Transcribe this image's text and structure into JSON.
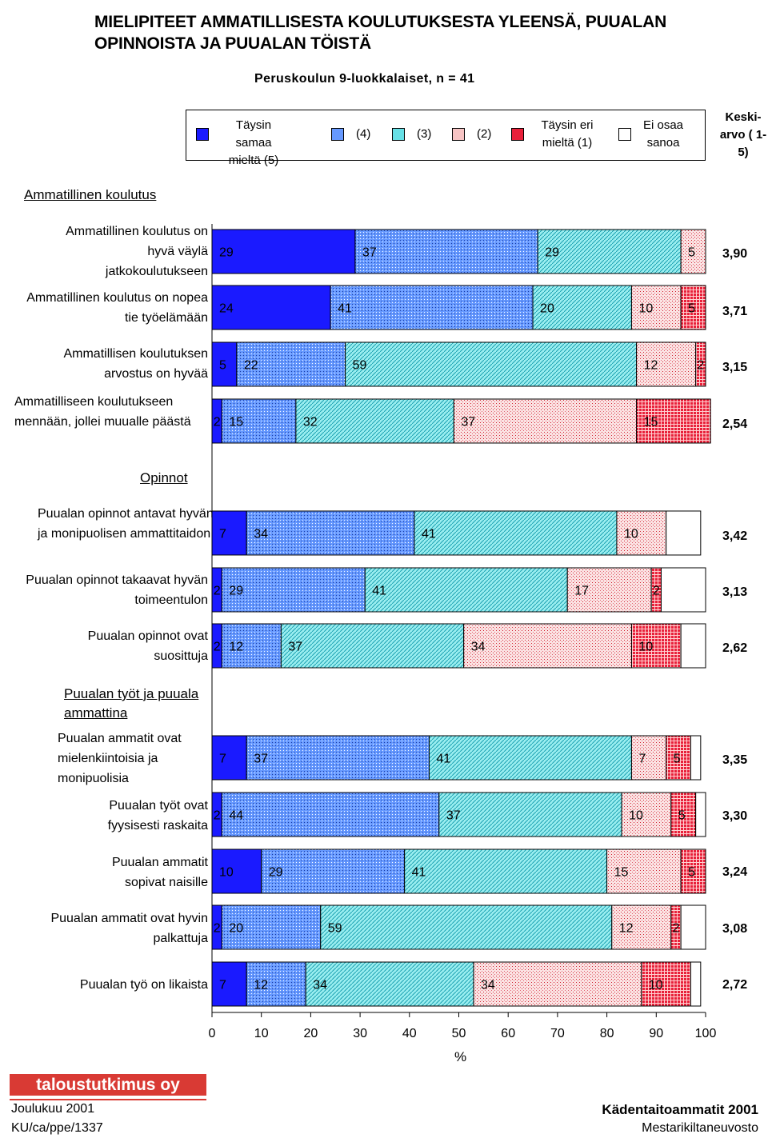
{
  "header": {
    "title": "MIELIPITEET AMMATILLISESTA KOULUTUKSESTA YLEENSÄ, PUUALAN OPINNOISTA JA PUUALAN TÖISTÄ",
    "subtitle": "Peruskoulun 9-luokkalaiset, n = 41"
  },
  "legend": {
    "items": [
      {
        "label": "Täysin samaa mieltä (5)",
        "pattern": "solid-blue"
      },
      {
        "label": "(4)",
        "pattern": "blue-dots"
      },
      {
        "label": "(3)",
        "pattern": "cyan-hatch"
      },
      {
        "label": "(2)",
        "pattern": "pink-dots"
      },
      {
        "label": "Täysin eri mieltä (1)",
        "pattern": "red-grid"
      },
      {
        "label": "Ei osaa sanoa",
        "pattern": "white"
      }
    ],
    "keskiarvo_label": "Keski- arvo ( 1-5)"
  },
  "sections": {
    "ammatillinen": "Ammatillinen koulutus",
    "opinnot": "Opinnot",
    "tyot": "Puualan työt ja puuala ammattina"
  },
  "colors": {
    "c5": "#1a1aff",
    "c4": "#6699ff",
    "c3": "#66e0e6",
    "c2": "#f09090",
    "c1": "#e8203a"
  },
  "chart_data": {
    "type": "bar",
    "orientation": "horizontal-stacked-percent",
    "xlabel": "%",
    "xlim": [
      0,
      100
    ],
    "xticks": [
      "0",
      "10",
      "20",
      "30",
      "40",
      "50",
      "60",
      "70",
      "80",
      "90",
      "100"
    ],
    "series_names": [
      "Täysin samaa mieltä (5)",
      "(4)",
      "(3)",
      "(2)",
      "Täysin eri mieltä (1)",
      "Ei osaa sanoa"
    ],
    "rows": [
      {
        "label": "Ammatillinen koulutus on hyvä väylä jatkokoulutukseen",
        "values": [
          29,
          37,
          29,
          5,
          0,
          0
        ],
        "mean": "3,90"
      },
      {
        "label": "Ammatillinen koulutus on nopea tie työelämään",
        "values": [
          24,
          41,
          20,
          10,
          5,
          0
        ],
        "mean": "3,71"
      },
      {
        "label": "Ammatillisen koulutuksen arvostus on hyvää",
        "values": [
          5,
          22,
          59,
          12,
          2,
          0
        ],
        "mean": "3,15"
      },
      {
        "label": "Ammatilliseen koulutukseen mennään, jollei muualle päästä",
        "values": [
          2,
          15,
          32,
          37,
          15,
          0
        ],
        "mean": "2,54"
      },
      {
        "label": "Puualan opinnot antavat hyvän ja monipuolisen ammattitaidon",
        "values": [
          7,
          34,
          41,
          10,
          0,
          7
        ],
        "mean": "3,42"
      },
      {
        "label": "Puualan opinnot takaavat hyvän toimeentulon",
        "values": [
          2,
          29,
          41,
          17,
          2,
          9
        ],
        "mean": "3,13"
      },
      {
        "label": "Puualan opinnot ovat suosittuja",
        "values": [
          2,
          12,
          37,
          34,
          10,
          5
        ],
        "mean": "2,62"
      },
      {
        "label": "Puualan ammatit ovat mielenkiintoisia ja monipuolisia",
        "values": [
          7,
          37,
          41,
          7,
          5,
          2
        ],
        "mean": "3,35"
      },
      {
        "label": "Puualan työt ovat fyysisesti raskaita",
        "values": [
          2,
          44,
          37,
          10,
          5,
          2
        ],
        "mean": "3,30"
      },
      {
        "label": "Puualan ammatit sopivat naisille",
        "values": [
          10,
          29,
          41,
          15,
          5,
          0
        ],
        "mean": "3,24"
      },
      {
        "label": "Puualan ammatit ovat hyvin palkattuja",
        "values": [
          2,
          20,
          59,
          12,
          2,
          5
        ],
        "mean": "3,08"
      },
      {
        "label": "Puualan työ on likaista",
        "values": [
          7,
          12,
          34,
          34,
          10,
          2
        ],
        "mean": "2,72"
      }
    ]
  },
  "footer": {
    "logo": "taloustutkimus oy",
    "date": "Joulukuu 2001",
    "code": "KU/ca/ppe/1337",
    "project": "Kädentaitoammatit 2001",
    "client": "Mestarikiltaneuvosto"
  }
}
